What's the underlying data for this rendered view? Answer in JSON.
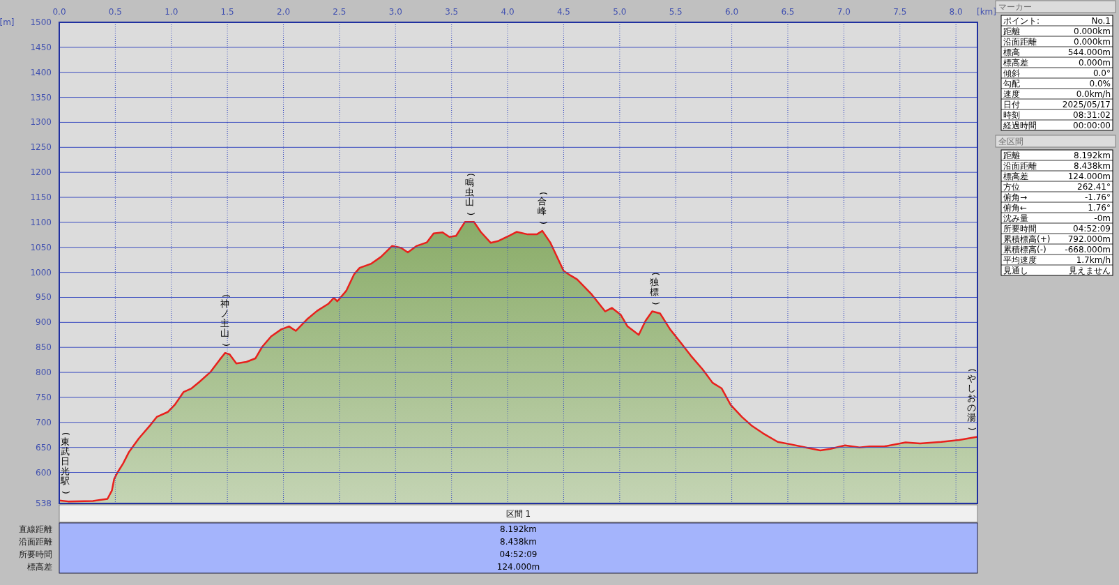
{
  "chart_data": [
    {
      "type": "area",
      "xlabel": "[km]",
      "ylabel": "[m]",
      "grid": true,
      "xlim": [
        0,
        8.192
      ],
      "ylim": [
        538,
        1500
      ],
      "xticks": [
        {
          "value": 0,
          "label": "0.0"
        },
        {
          "value": 0.5,
          "label": "0.5"
        },
        {
          "value": 1,
          "label": "1.0"
        },
        {
          "value": 1.5,
          "label": "1.5"
        },
        {
          "value": 2,
          "label": "2.0"
        },
        {
          "value": 2.5,
          "label": "2.5"
        },
        {
          "value": 3,
          "label": "3.0"
        },
        {
          "value": 3.5,
          "label": "3.5"
        },
        {
          "value": 4,
          "label": "4.0"
        },
        {
          "value": 4.5,
          "label": "4.5"
        },
        {
          "value": 5,
          "label": "5.0"
        },
        {
          "value": 5.5,
          "label": "5.5"
        },
        {
          "value": 6,
          "label": "6.0"
        },
        {
          "value": 6.5,
          "label": "6.5"
        },
        {
          "value": 7,
          "label": "7.0"
        },
        {
          "value": 7.5,
          "label": "7.5"
        },
        {
          "value": 8,
          "label": "8.0"
        }
      ],
      "yticks": [
        538,
        600,
        650,
        700,
        750,
        800,
        850,
        900,
        950,
        1000,
        1050,
        1100,
        1150,
        1200,
        1250,
        1300,
        1350,
        1400,
        1450,
        1500
      ],
      "x": [
        0,
        0.08,
        0.3,
        0.43,
        0.47,
        0.49,
        0.52,
        0.57,
        0.62,
        0.71,
        0.81,
        0.87,
        0.97,
        1.03,
        1.11,
        1.18,
        1.25,
        1.35,
        1.43,
        1.48,
        1.52,
        1.58,
        1.67,
        1.75,
        1.81,
        1.89,
        1.98,
        2.05,
        2.11,
        2.21,
        2.3,
        2.4,
        2.45,
        2.48,
        2.56,
        2.63,
        2.68,
        2.78,
        2.87,
        2.97,
        3.05,
        3.11,
        3.19,
        3.28,
        3.34,
        3.42,
        3.48,
        3.54,
        3.62,
        3.7,
        3.76,
        3.85,
        3.92,
        4.02,
        4.08,
        4.18,
        4.26,
        4.31,
        4.38,
        4.5,
        4.56,
        4.62,
        4.75,
        4.87,
        4.93,
        5.01,
        5.07,
        5.17,
        5.23,
        5.29,
        5.36,
        5.45,
        5.55,
        5.64,
        5.74,
        5.83,
        5.91,
        5.99,
        6.09,
        6.18,
        6.28,
        6.41,
        6.53,
        6.66,
        6.79,
        6.88,
        7.01,
        7.14,
        7.23,
        7.36,
        7.55,
        7.68,
        7.87,
        8.03,
        8.19
      ],
      "series": [
        {
          "color": "#e8201c",
          "values": [
            544,
            542,
            543,
            547,
            564,
            587,
            600,
            618,
            640,
            668,
            694,
            711,
            721,
            735,
            761,
            768,
            781,
            801,
            825,
            839,
            836,
            818,
            821,
            828,
            851,
            872,
            886,
            892,
            883,
            906,
            923,
            937,
            949,
            942,
            963,
            996,
            1009,
            1017,
            1031,
            1053,
            1049,
            1040,
            1053,
            1060,
            1078,
            1080,
            1071,
            1073,
            1101,
            1101,
            1081,
            1059,
            1063,
            1074,
            1081,
            1076,
            1076,
            1083,
            1060,
            1003,
            994,
            986,
            956,
            922,
            929,
            915,
            892,
            875,
            903,
            922,
            918,
            886,
            858,
            832,
            806,
            779,
            768,
            735,
            711,
            693,
            678,
            661,
            656,
            650,
            644,
            647,
            654,
            650,
            652,
            652,
            660,
            658,
            661,
            665,
            671
          ]
        }
      ],
      "annotations": [
        {
          "text": "(東武日光駅)",
          "x": 0,
          "y": 544
        },
        {
          "text": "(神ノ主山)",
          "x": 1.48,
          "y": 839
        },
        {
          "text": "(鳴虫山)",
          "x": 3.66,
          "y": 1101
        },
        {
          "text": "(合峰)",
          "x": 4.31,
          "y": 1083
        },
        {
          "text": "(独標)",
          "x": 5.31,
          "y": 922
        },
        {
          "text": "(やしおの湯)",
          "x": 8.19,
          "y": 671
        }
      ]
    },
    {
      "type": "other",
      "title": "マーカー",
      "annotations": [
        "ポイント:",
        "No.1",
        "距離",
        "0.000km",
        "沿面距離",
        "0.000km",
        "標高",
        "544.000m",
        "標高差",
        "0.000m",
        "傾斜",
        "0.0°",
        "勾配",
        "0.0%",
        "速度",
        "0.0km/h",
        "日付",
        "2025/05/17",
        "時刻",
        "08:31:02",
        "経過時間",
        "00:00:00"
      ]
    },
    {
      "type": "other",
      "title": "全区間",
      "annotations": [
        "距離",
        "8.192km",
        "沿面距離",
        "8.438km",
        "標高差",
        "124.000m",
        "方位",
        "262.41°",
        "俯角→",
        "-1.76°",
        "俯角←",
        "1.76°",
        "沈み量",
        "-0m",
        "所要時間",
        "04:52:09",
        "累積標高(+)",
        "792.000m",
        "累積標高(-)",
        "-668.000m",
        "平均速度",
        "1.7km/h",
        "見通し",
        "見えません"
      ]
    },
    {
      "type": "other",
      "title": "区間 1",
      "annotations": [
        "直線距離",
        "8.192km",
        "沿面距離",
        "8.438km",
        "所要時間",
        "04:52:09",
        "標高差",
        "124.000m"
      ]
    }
  ]
}
